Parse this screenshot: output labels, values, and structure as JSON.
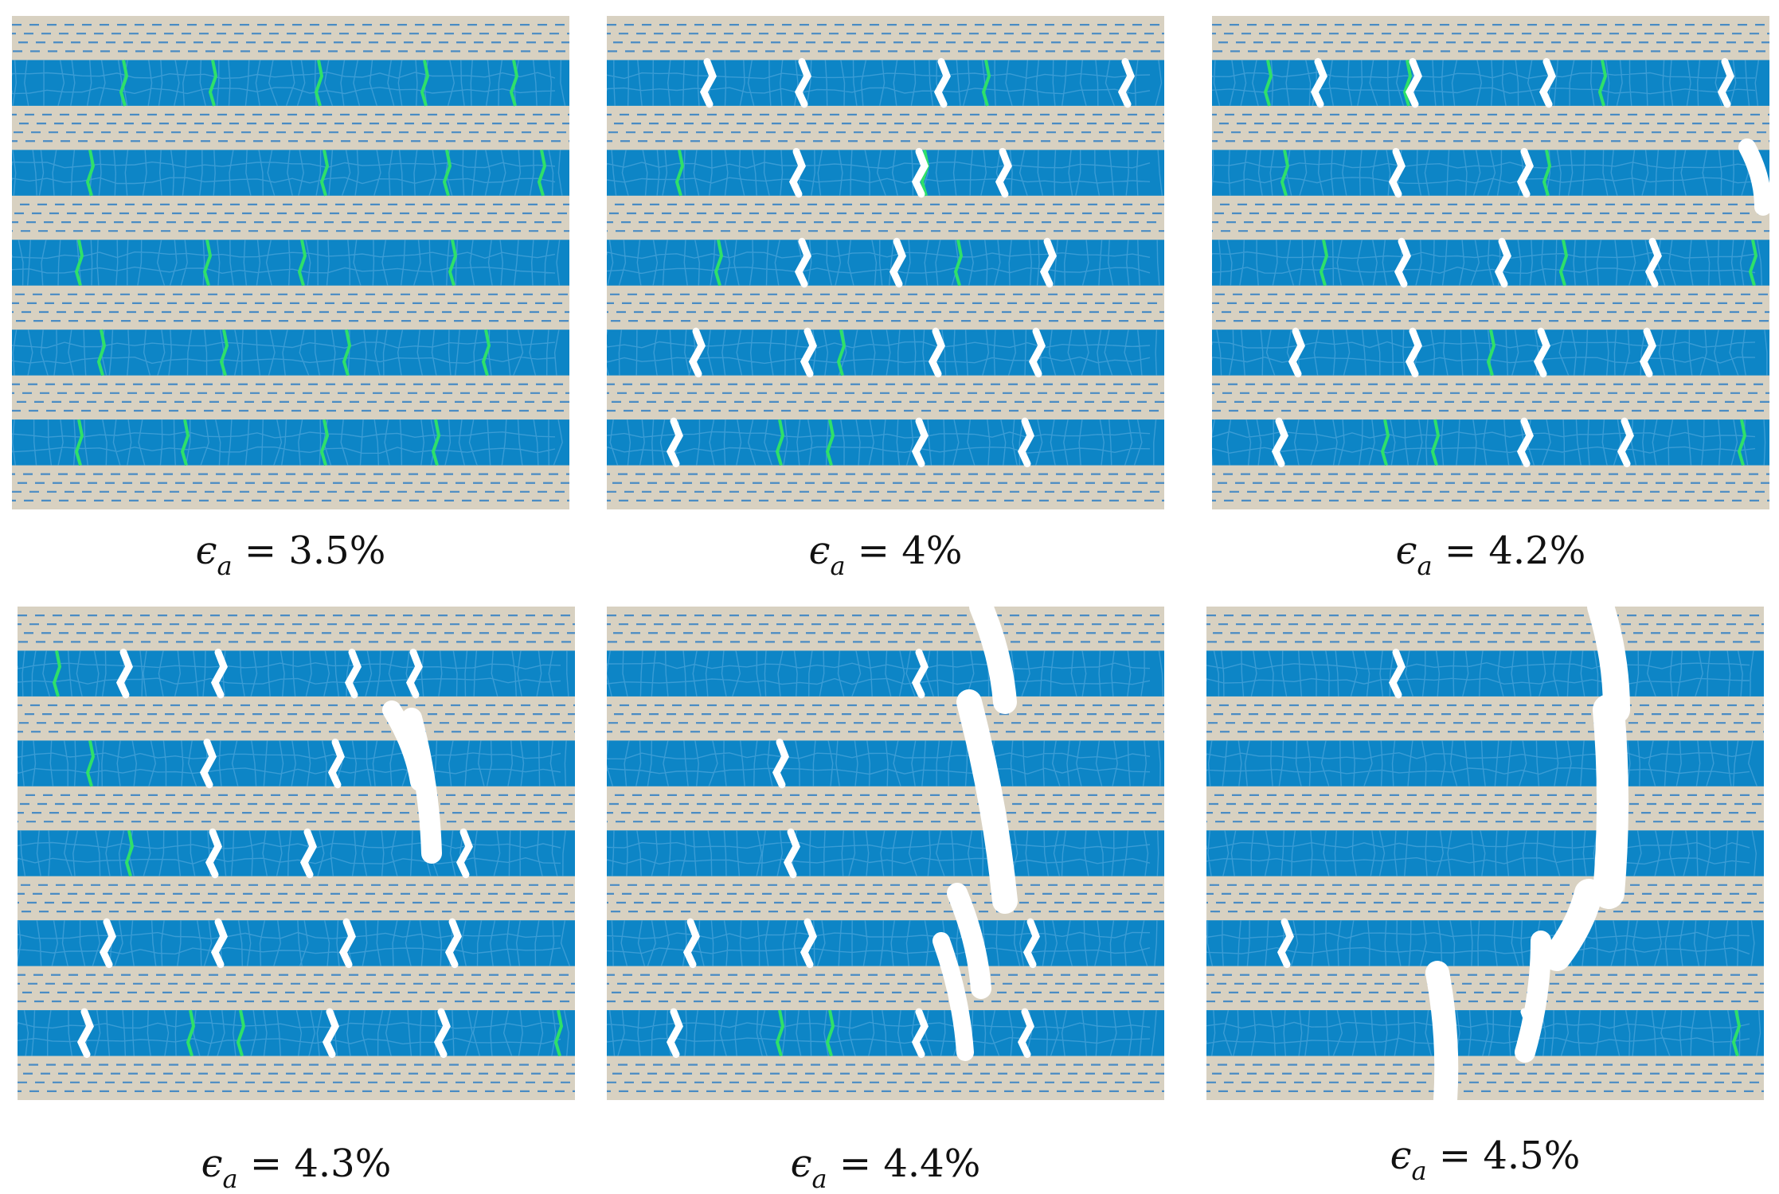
{
  "figure": {
    "panels": [
      {
        "caption": {
          "symbol": "ϵ",
          "subscript": "a",
          "equals": "=",
          "value": "3.5%"
        },
        "strain_percent": 3.5
      },
      {
        "caption": {
          "symbol": "ϵ",
          "subscript": "a",
          "equals": "=",
          "value": "4%"
        },
        "strain_percent": 4.0
      },
      {
        "caption": {
          "symbol": "ϵ",
          "subscript": "a",
          "equals": "=",
          "value": "4.2%"
        },
        "strain_percent": 4.2
      },
      {
        "caption": {
          "symbol": "ϵ",
          "subscript": "a",
          "equals": "=",
          "value": "4.3%"
        },
        "strain_percent": 4.3
      },
      {
        "caption": {
          "symbol": "ϵ",
          "subscript": "a",
          "equals": "=",
          "value": "4.4%"
        },
        "strain_percent": 4.4
      },
      {
        "caption": {
          "symbol": "ϵ",
          "subscript": "a",
          "equals": "=",
          "value": "4.5%"
        },
        "strain_percent": 4.5
      }
    ],
    "colors": {
      "matrix_layer": "#d8d1c1",
      "matrix_dash": "#4a8cc4",
      "fiber_layer": "#0d85c6",
      "grain_boundary": "#3f9fd6",
      "damage_crack": "#2ee06a",
      "open_crack": "#ffffff"
    }
  }
}
